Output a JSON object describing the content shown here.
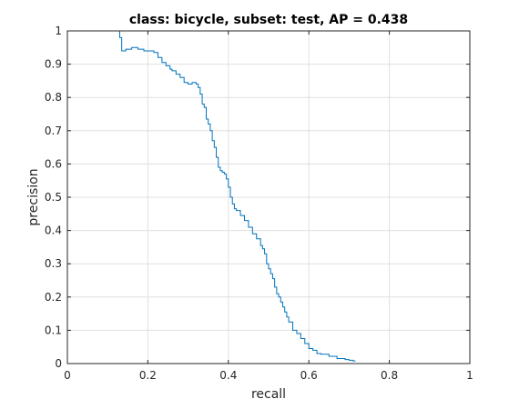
{
  "chart_data": {
    "type": "line",
    "title": "class: bicycle, subset: test, AP = 0.438",
    "xlabel": "recall",
    "ylabel": "precision",
    "xlim": [
      0,
      1
    ],
    "ylim": [
      0,
      1
    ],
    "grid": true,
    "x_ticks": [
      0,
      0.2,
      0.4,
      0.6,
      0.8,
      1
    ],
    "x_tick_labels": [
      "0",
      "0.2",
      "0.4",
      "0.6",
      "0.8",
      "1"
    ],
    "y_ticks": [
      0,
      0.1,
      0.2,
      0.3,
      0.4,
      0.5,
      0.6,
      0.7,
      0.8,
      0.9,
      1
    ],
    "y_tick_labels": [
      "0",
      "0.1",
      "0.2",
      "0.3",
      "0.4",
      "0.5",
      "0.6",
      "0.7",
      "0.8",
      "0.9",
      "1"
    ],
    "line_color": "#0072bd",
    "series": [
      {
        "step": "post",
        "x": [
          0,
          0.13,
          0.135,
          0.145,
          0.16,
          0.175,
          0.19,
          0.21,
          0.215,
          0.225,
          0.235,
          0.245,
          0.255,
          0.26,
          0.27,
          0.28,
          0.29,
          0.3,
          0.31,
          0.32,
          0.325,
          0.33,
          0.335,
          0.34,
          0.345,
          0.35,
          0.355,
          0.36,
          0.365,
          0.37,
          0.375,
          0.38,
          0.385,
          0.39,
          0.395,
          0.4,
          0.405,
          0.41,
          0.415,
          0.42,
          0.43,
          0.44,
          0.45,
          0.46,
          0.47,
          0.48,
          0.485,
          0.49,
          0.495,
          0.5,
          0.505,
          0.51,
          0.515,
          0.52,
          0.525,
          0.53,
          0.535,
          0.54,
          0.545,
          0.55,
          0.56,
          0.57,
          0.58,
          0.59,
          0.6,
          0.61,
          0.62,
          0.63,
          0.65,
          0.67,
          0.69,
          0.7,
          0.71,
          0.715
        ],
        "y": [
          1,
          0.98,
          0.94,
          0.945,
          0.95,
          0.945,
          0.94,
          0.94,
          0.935,
          0.92,
          0.905,
          0.895,
          0.885,
          0.88,
          0.87,
          0.86,
          0.845,
          0.84,
          0.845,
          0.84,
          0.83,
          0.81,
          0.78,
          0.77,
          0.735,
          0.72,
          0.7,
          0.67,
          0.65,
          0.62,
          0.59,
          0.58,
          0.575,
          0.57,
          0.555,
          0.53,
          0.5,
          0.48,
          0.465,
          0.46,
          0.445,
          0.43,
          0.41,
          0.39,
          0.375,
          0.355,
          0.345,
          0.33,
          0.3,
          0.285,
          0.27,
          0.255,
          0.23,
          0.21,
          0.2,
          0.185,
          0.17,
          0.155,
          0.14,
          0.125,
          0.1,
          0.09,
          0.075,
          0.06,
          0.045,
          0.04,
          0.03,
          0.028,
          0.022,
          0.015,
          0.012,
          0.01,
          0.008,
          0.007
        ]
      }
    ]
  }
}
